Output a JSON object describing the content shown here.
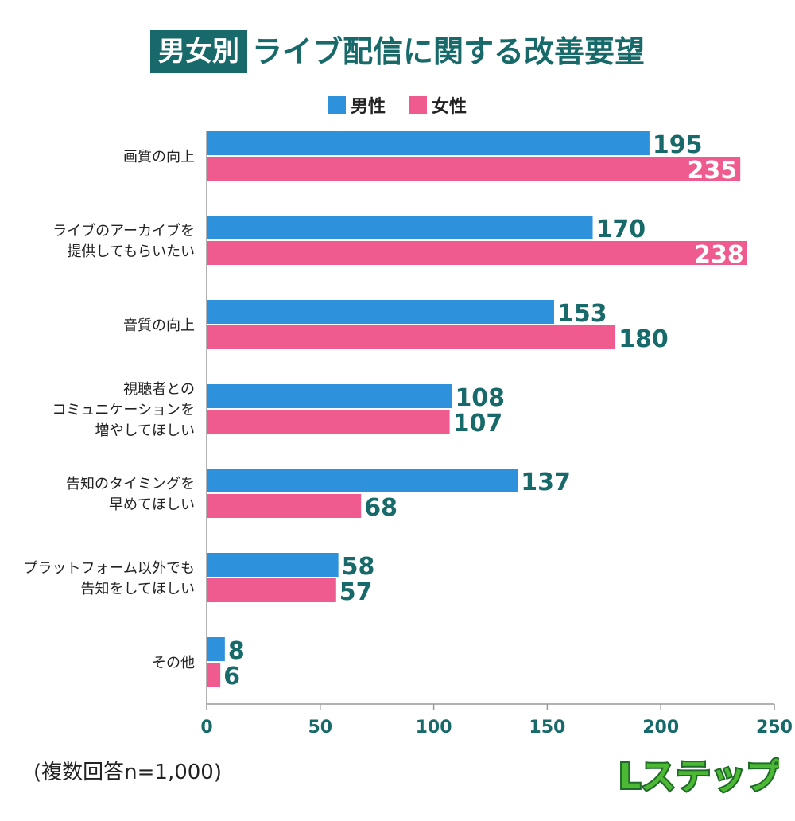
{
  "title": {
    "tag": "男女別",
    "main": "ライブ配信に関する改善要望"
  },
  "colors": {
    "male": "#2d91dc",
    "female": "#ef5b8e",
    "accent": "#186a6a"
  },
  "note": "(複数回答n=1,000)",
  "logo": {
    "text": "Lステップ"
  },
  "chart_data": {
    "type": "bar",
    "orientation": "horizontal",
    "categories": [
      [
        "画質の向上"
      ],
      [
        "ライブのアーカイブを",
        "提供してもらいたい"
      ],
      [
        "音質の向上"
      ],
      [
        "視聴者との",
        "コミュニケーションを",
        "増やしてほしい"
      ],
      [
        "告知のタイミングを",
        "早めてほしい"
      ],
      [
        "プラットフォーム以外でも",
        "告知をしてほしい"
      ],
      [
        "その他"
      ]
    ],
    "series": [
      {
        "name": "男性",
        "values": [
          195,
          170,
          153,
          108,
          137,
          58,
          8
        ]
      },
      {
        "name": "女性",
        "values": [
          235,
          238,
          180,
          107,
          68,
          57,
          6
        ]
      }
    ],
    "xlim": [
      0,
      250
    ],
    "xticks": [
      "0",
      "50",
      "100",
      "150",
      "200",
      "250"
    ]
  }
}
